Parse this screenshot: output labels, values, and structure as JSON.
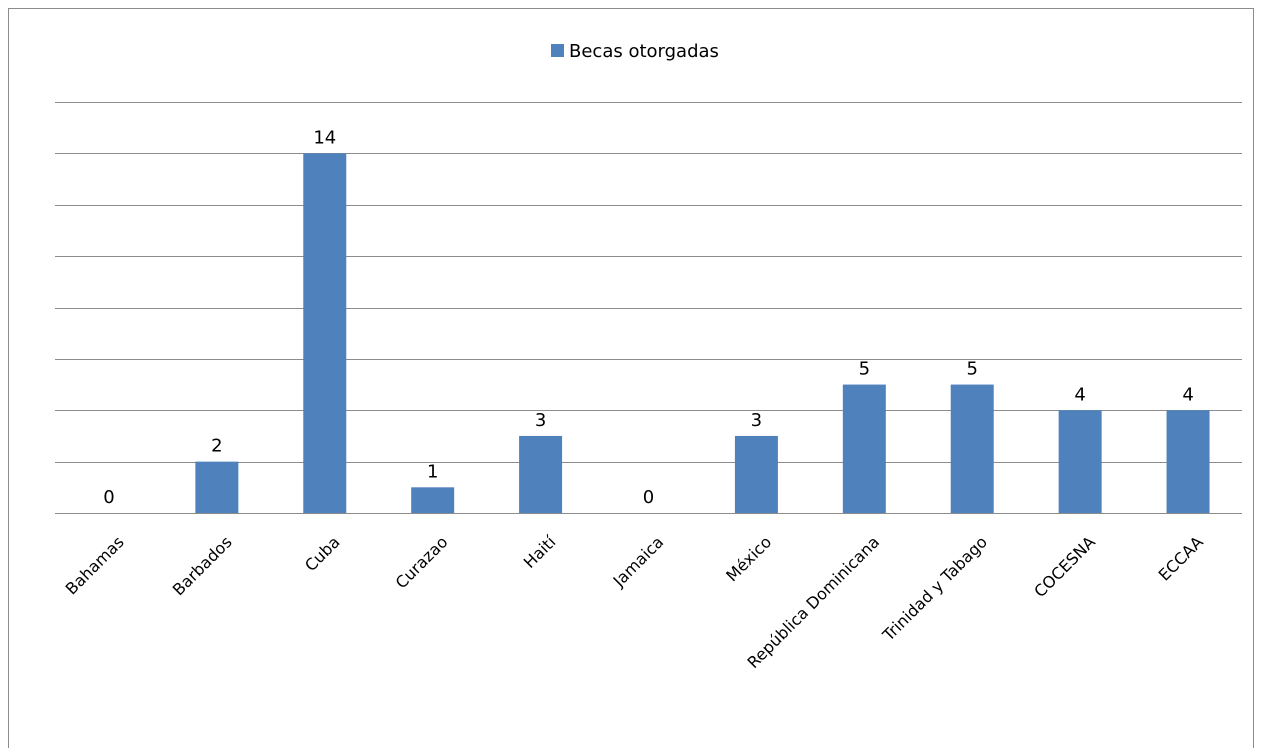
{
  "chart_data": {
    "type": "bar",
    "categories": [
      "Bahamas",
      "Barbados",
      "Cuba",
      "Curazao",
      "Haití",
      "Jamaica",
      "México",
      "República Dominicana",
      "Trinidad y Tabago",
      "COCESNA",
      "ECCAA"
    ],
    "series": [
      {
        "name": "Becas otorgadas",
        "values": [
          0,
          2,
          14,
          1,
          3,
          0,
          3,
          5,
          5,
          4,
          4
        ],
        "color": "#4f81bd"
      }
    ],
    "ylim": [
      0,
      16
    ],
    "grid": true,
    "y_tick_labels_visible": false,
    "legend_position": "top-center",
    "data_labels": true
  }
}
